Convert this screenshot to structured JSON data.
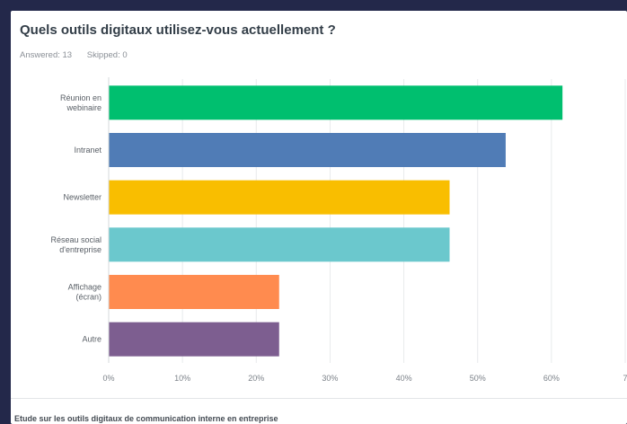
{
  "question": {
    "title": "Quels outils digitaux utilisez-vous actuellement ?",
    "answered_label": "Answered: 13",
    "skipped_label": "Skipped: 0"
  },
  "caption": "Etude sur les outils digitaux de communication interne en entreprise",
  "chart_data": {
    "type": "bar",
    "orientation": "horizontal",
    "categories": [
      [
        "Réunion en",
        "webinaire"
      ],
      [
        "Intranet"
      ],
      [
        "Newsletter"
      ],
      [
        "Réseau social",
        "d'entreprise"
      ],
      [
        "Affichage",
        "(écran)"
      ],
      [
        "Autre"
      ]
    ],
    "values": [
      61.5,
      53.8,
      46.2,
      46.2,
      23.1,
      23.1
    ],
    "colors": [
      "#00bf6f",
      "#507cb6",
      "#f9be00",
      "#6bc8cd",
      "#ff8b4f",
      "#7d5e90"
    ],
    "x_ticks": [
      "0%",
      "10%",
      "20%",
      "30%",
      "40%",
      "50%",
      "60%",
      "7"
    ],
    "xlim": [
      0,
      70
    ],
    "grid": true
  }
}
